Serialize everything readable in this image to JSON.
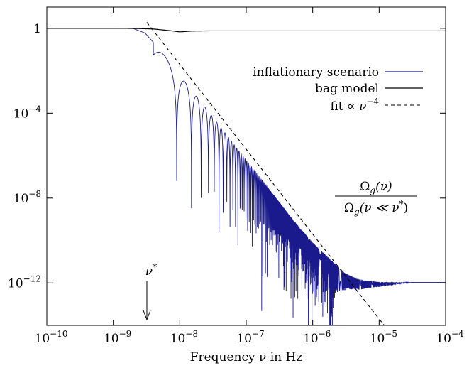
{
  "chart_data": {
    "type": "line",
    "title": "",
    "xlabel": "Frequency ν in Hz",
    "ylabel": "",
    "x_scale": "log",
    "y_scale": "log",
    "xlim": [
      1e-10,
      0.0001
    ],
    "ylim": [
      1e-14,
      10
    ],
    "grid": false,
    "legend_position": "top-right",
    "x_ticks": [
      {
        "value": 1e-10,
        "base": "10",
        "exp": "−10"
      },
      {
        "value": 1e-09,
        "base": "10",
        "exp": "−9"
      },
      {
        "value": 1e-08,
        "base": "10",
        "exp": "−8"
      },
      {
        "value": 1e-07,
        "base": "10",
        "exp": "−7"
      },
      {
        "value": 1e-06,
        "base": "10",
        "exp": "−6"
      },
      {
        "value": 1e-05,
        "base": "10",
        "exp": "−5"
      },
      {
        "value": 0.0001,
        "base": "10",
        "exp": "−4"
      }
    ],
    "y_ticks": [
      {
        "value": 1,
        "base": "1",
        "exp": ""
      },
      {
        "value": 0.0001,
        "base": "10",
        "exp": "−4"
      },
      {
        "value": 1e-08,
        "base": "10",
        "exp": "−8"
      },
      {
        "value": 1e-12,
        "base": "10",
        "exp": "−12"
      }
    ],
    "series": [
      {
        "name": "inflationary scenario",
        "color": "#1a1a8c",
        "style": "solid",
        "envelope_x": [
          1e-10,
          1e-09,
          2e-09,
          3e-09,
          5e-09,
          1e-08,
          2e-08,
          5e-08,
          1e-07,
          2e-07,
          5e-07,
          1e-06,
          2e-06,
          3e-06,
          5e-06,
          1e-05,
          2e-05,
          0.0001
        ],
        "envelope_y": [
          1,
          0.999,
          0.98,
          0.6,
          0.1,
          0.006,
          0.0004,
          1e-05,
          6e-07,
          4e-08,
          1e-09,
          8e-11,
          1e-11,
          3e-12,
          1.4e-12,
          1.1e-12,
          1.05e-12,
          1.05e-12
        ],
        "oscillation_zeros_from_x": 6e-09
      },
      {
        "name": "bag model",
        "color": "#000000",
        "style": "solid",
        "x": [
          1e-10,
          1e-09,
          2e-09,
          4e-09,
          7e-09,
          1e-08,
          1.5e-08,
          3e-08,
          1e-07,
          1e-06,
          1e-05,
          0.0001
        ],
        "y": [
          1,
          0.999,
          0.99,
          0.93,
          0.78,
          0.68,
          0.74,
          0.76,
          0.76,
          0.76,
          0.76,
          0.76
        ]
      },
      {
        "name": "fit ∝ ν⁻⁴",
        "color": "#000000",
        "style": "dashed",
        "x_start": 3.2e-09,
        "x_end": 1.3e-05,
        "y_at_1e-8": 0.02,
        "slope_decades": -4
      }
    ],
    "legend": [
      {
        "label": "inflationary scenario",
        "series": 0
      },
      {
        "label": "bag model",
        "series": 1
      },
      {
        "label_pre": "fit ∝ ",
        "label_base": "ν",
        "label_exp": "−4",
        "series": 2
      }
    ],
    "annotations": {
      "nu_star": {
        "base": "ν",
        "sup": "*",
        "x": 3.2e-09
      },
      "ratio_numerator": "Ω",
      "ratio_numerator_sub": "g",
      "ratio_numerator_arg": "(ν)",
      "ratio_denominator": "Ω",
      "ratio_denominator_sub": "g",
      "ratio_denominator_arg": "(ν ≪ ν",
      "ratio_denominator_star": "*",
      "ratio_denominator_close": ")"
    }
  }
}
